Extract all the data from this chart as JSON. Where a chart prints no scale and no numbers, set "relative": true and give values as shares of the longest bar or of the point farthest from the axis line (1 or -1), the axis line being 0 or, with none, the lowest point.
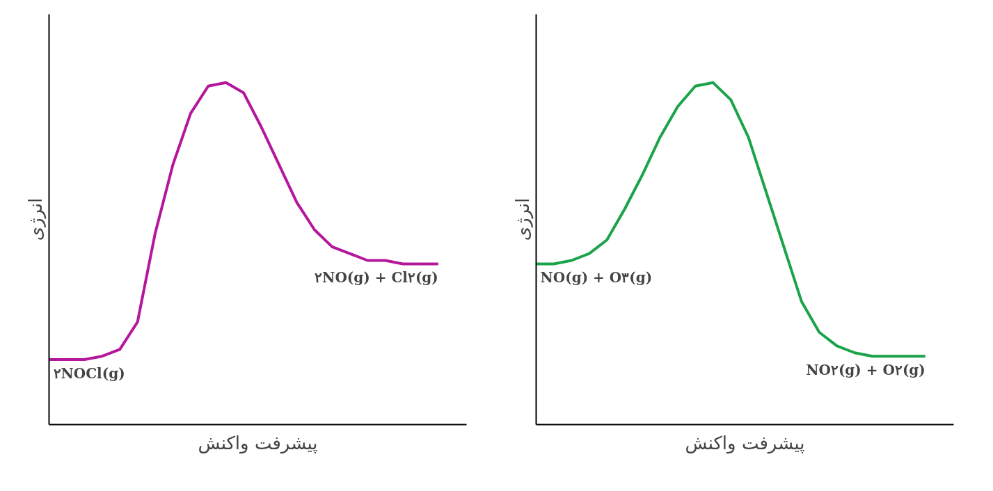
{
  "chart_data": [
    {
      "type": "line",
      "relative": true,
      "xlabel": "پیشرفت واکنش",
      "ylabel": "انرژی",
      "categories": [
        null,
        null,
        null,
        null,
        null,
        null,
        null,
        null,
        null,
        null,
        null,
        null,
        null,
        null,
        null,
        null,
        null,
        null,
        null,
        null,
        null,
        null,
        null
      ],
      "series": [
        {
          "color": "#b5179c",
          "values": [
            0.19,
            0.19,
            0.19,
            0.2,
            0.22,
            0.3,
            0.56,
            0.76,
            0.91,
            0.99,
            1.0,
            0.97,
            0.87,
            0.76,
            0.65,
            0.57,
            0.52,
            0.5,
            0.48,
            0.48,
            0.47,
            0.47,
            0.47
          ]
        }
      ],
      "annotations": [
        "۲NOCl(g)",
        "۲NO(g) + Cl۲(g)"
      ],
      "grid": false
    },
    {
      "type": "line",
      "relative": true,
      "xlabel": "پیشرفت واکنش",
      "ylabel": "انرژی",
      "categories": [
        null,
        null,
        null,
        null,
        null,
        null,
        null,
        null,
        null,
        null,
        null,
        null,
        null,
        null,
        null,
        null,
        null,
        null,
        null,
        null,
        null,
        null,
        null
      ],
      "series": [
        {
          "color": "#1ba34b",
          "values": [
            0.47,
            0.47,
            0.48,
            0.5,
            0.54,
            0.63,
            0.73,
            0.84,
            0.93,
            0.99,
            1.0,
            0.95,
            0.84,
            0.68,
            0.52,
            0.36,
            0.27,
            0.23,
            0.21,
            0.2,
            0.2,
            0.2,
            0.2
          ]
        }
      ],
      "annotations": [
        "NO(g) + O۳(g)",
        "NO۲(g) + O۲(g)"
      ],
      "grid": false
    }
  ]
}
